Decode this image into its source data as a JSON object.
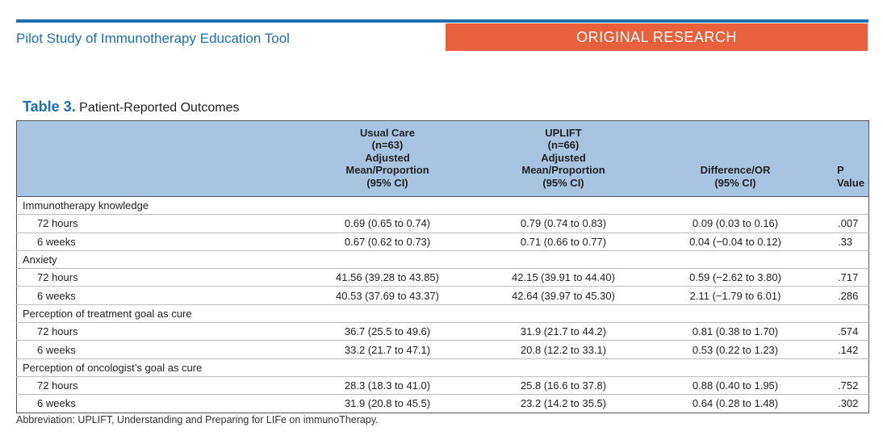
{
  "header": {
    "running_title": "Pilot Study of Immunotherapy Education Tool",
    "section_label": "ORIGINAL RESEARCH",
    "accent_color": "#1f6fae",
    "tag_color": "#e8603c"
  },
  "table": {
    "number": "Table 3.",
    "title": "Patient-Reported Outcomes",
    "header_color": "#a8c4e0",
    "columns": {
      "usual_care": [
        "Usual Care",
        "(n=63)",
        "Adjusted",
        "Mean/Proportion",
        "(95% CI)"
      ],
      "uplift": [
        "UPLIFT",
        "(n=66)",
        "Adjusted",
        "Mean/Proportion",
        "(95% CI)"
      ],
      "difference": [
        "Difference/OR",
        "(95% CI)"
      ],
      "p_value": "P Value"
    },
    "groups": [
      {
        "label": "Immunotherapy knowledge",
        "rows": [
          {
            "time": "72 hours",
            "usual_care": "0.69 (0.65 to 0.74)",
            "uplift": "0.79 (0.74 to 0.83)",
            "difference": "0.09 (0.03 to 0.16)",
            "p": ".007"
          },
          {
            "time": "6 weeks",
            "usual_care": "0.67 (0.62 to 0.73)",
            "uplift": "0.71 (0.66 to 0.77)",
            "difference": "0.04 (−0.04 to 0.12)",
            "p": ".33"
          }
        ]
      },
      {
        "label": "Anxiety",
        "rows": [
          {
            "time": "72 hours",
            "usual_care": "41.56 (39.28 to 43.85)",
            "uplift": "42.15 (39.91 to 44.40)",
            "difference": "0.59 (−2.62 to 3.80)",
            "p": ".717"
          },
          {
            "time": "6 weeks",
            "usual_care": "40.53 (37.69 to 43.37)",
            "uplift": "42.64 (39.97 to 45.30)",
            "difference": "2.11 (−1.79 to 6.01)",
            "p": ".286"
          }
        ]
      },
      {
        "label": "Perception of treatment goal as cure",
        "rows": [
          {
            "time": "72 hours",
            "usual_care": "36.7 (25.5 to 49.6)",
            "uplift": "31.9 (21.7 to 44.2)",
            "difference": "0.81 (0.38 to 1.70)",
            "p": ".574"
          },
          {
            "time": "6 weeks",
            "usual_care": "33.2 (21.7 to 47.1)",
            "uplift": "20.8 (12.2 to 33.1)",
            "difference": "0.53 (0.22 to 1.23)",
            "p": ".142"
          }
        ]
      },
      {
        "label": "Perception of oncologist’s goal as cure",
        "rows": [
          {
            "time": "72 hours",
            "usual_care": "28.3 (18.3 to 41.0)",
            "uplift": "25.8 (16.6 to 37.8)",
            "difference": "0.88 (0.40 to 1.95)",
            "p": ".752"
          },
          {
            "time": "6 weeks",
            "usual_care": "31.9 (20.8 to 45.5)",
            "uplift": "23.2 (14.2 to 35.5)",
            "difference": "0.64 (0.28 to 1.48)",
            "p": ".302"
          }
        ]
      }
    ],
    "footnote": "Abbreviation: UPLIFT, Understanding and Preparing for LIFe on immunoTherapy."
  }
}
